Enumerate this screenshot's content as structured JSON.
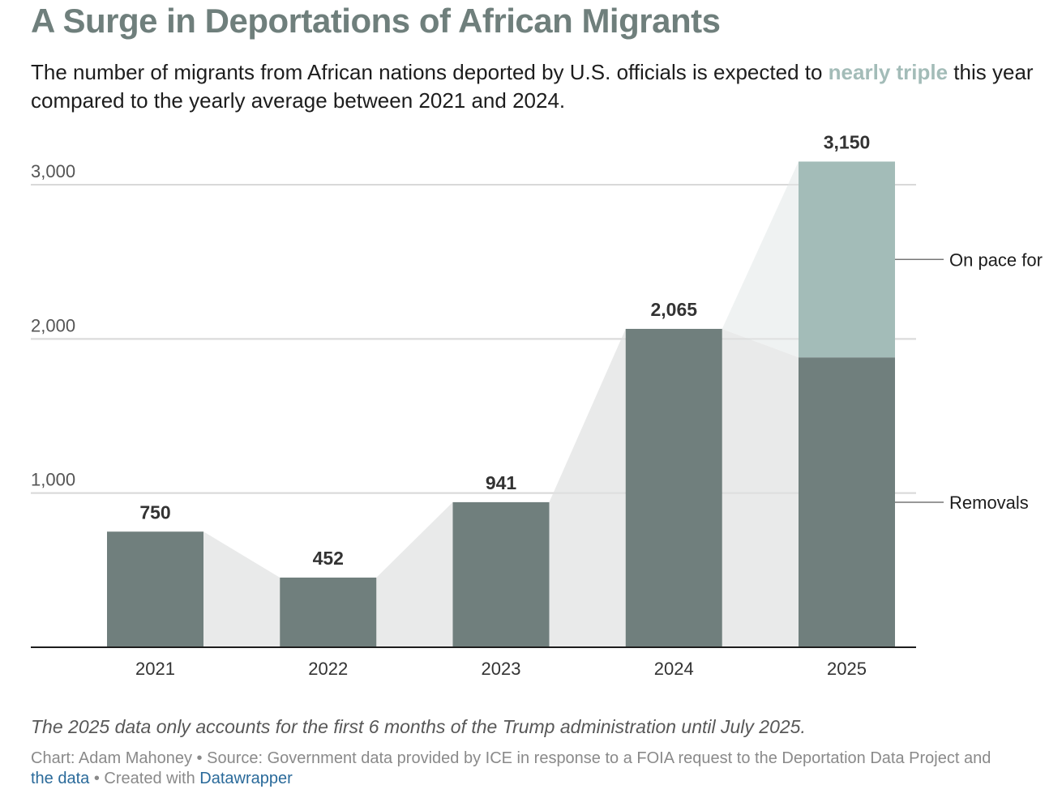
{
  "header": {
    "title": "A Surge in Deportations of African Migrants",
    "subtitle_before": "The number of migrants from African nations deported by U.S. officials is expected to ",
    "subtitle_highlight": "nearly triple",
    "subtitle_after": " this year compared to the yearly average between 2021 and 2024."
  },
  "colors": {
    "title": "#6f7f7c",
    "removals": "#707f7d",
    "on_pace": "#a3bcb8",
    "connector": "#e9eaea",
    "connector_projection": "#eff2f2",
    "gridline": "#d9d9d9",
    "baseline": "#1d1d1d",
    "link": "#2a6a9a"
  },
  "chart_data": {
    "type": "bar",
    "stacked": true,
    "categories": [
      "2021",
      "2022",
      "2023",
      "2024",
      "2025"
    ],
    "series": [
      {
        "name": "Removals",
        "values": [
          750,
          452,
          941,
          2065,
          1880
        ]
      },
      {
        "name": "On pace for",
        "values": [
          0,
          0,
          0,
          0,
          1270
        ]
      }
    ],
    "total_labels": [
      "750",
      "452",
      "941",
      "2,065",
      "3,150"
    ],
    "yticks": [
      1000,
      2000,
      3000
    ],
    "ytick_labels": [
      "1,000",
      "2,000",
      "3,000"
    ],
    "ylim": [
      0,
      3150
    ],
    "grid": true,
    "legend": {
      "placement": "right",
      "entries": [
        "On pace for",
        "Removals"
      ]
    },
    "title": "A Surge in Deportations of African Migrants",
    "xlabel": "",
    "ylabel": ""
  },
  "footer": {
    "note": "The 2025 data only accounts for the first 6 months of the Trump administration until July 2025.",
    "byline_text": "Chart: Adam Mahoney • Source: Government data provided by ICE in response to a FOIA request to the Deportation Data Project and",
    "link_get_data": "the data",
    "created_with_text": " • Created with ",
    "link_datawrapper": "Datawrapper"
  }
}
